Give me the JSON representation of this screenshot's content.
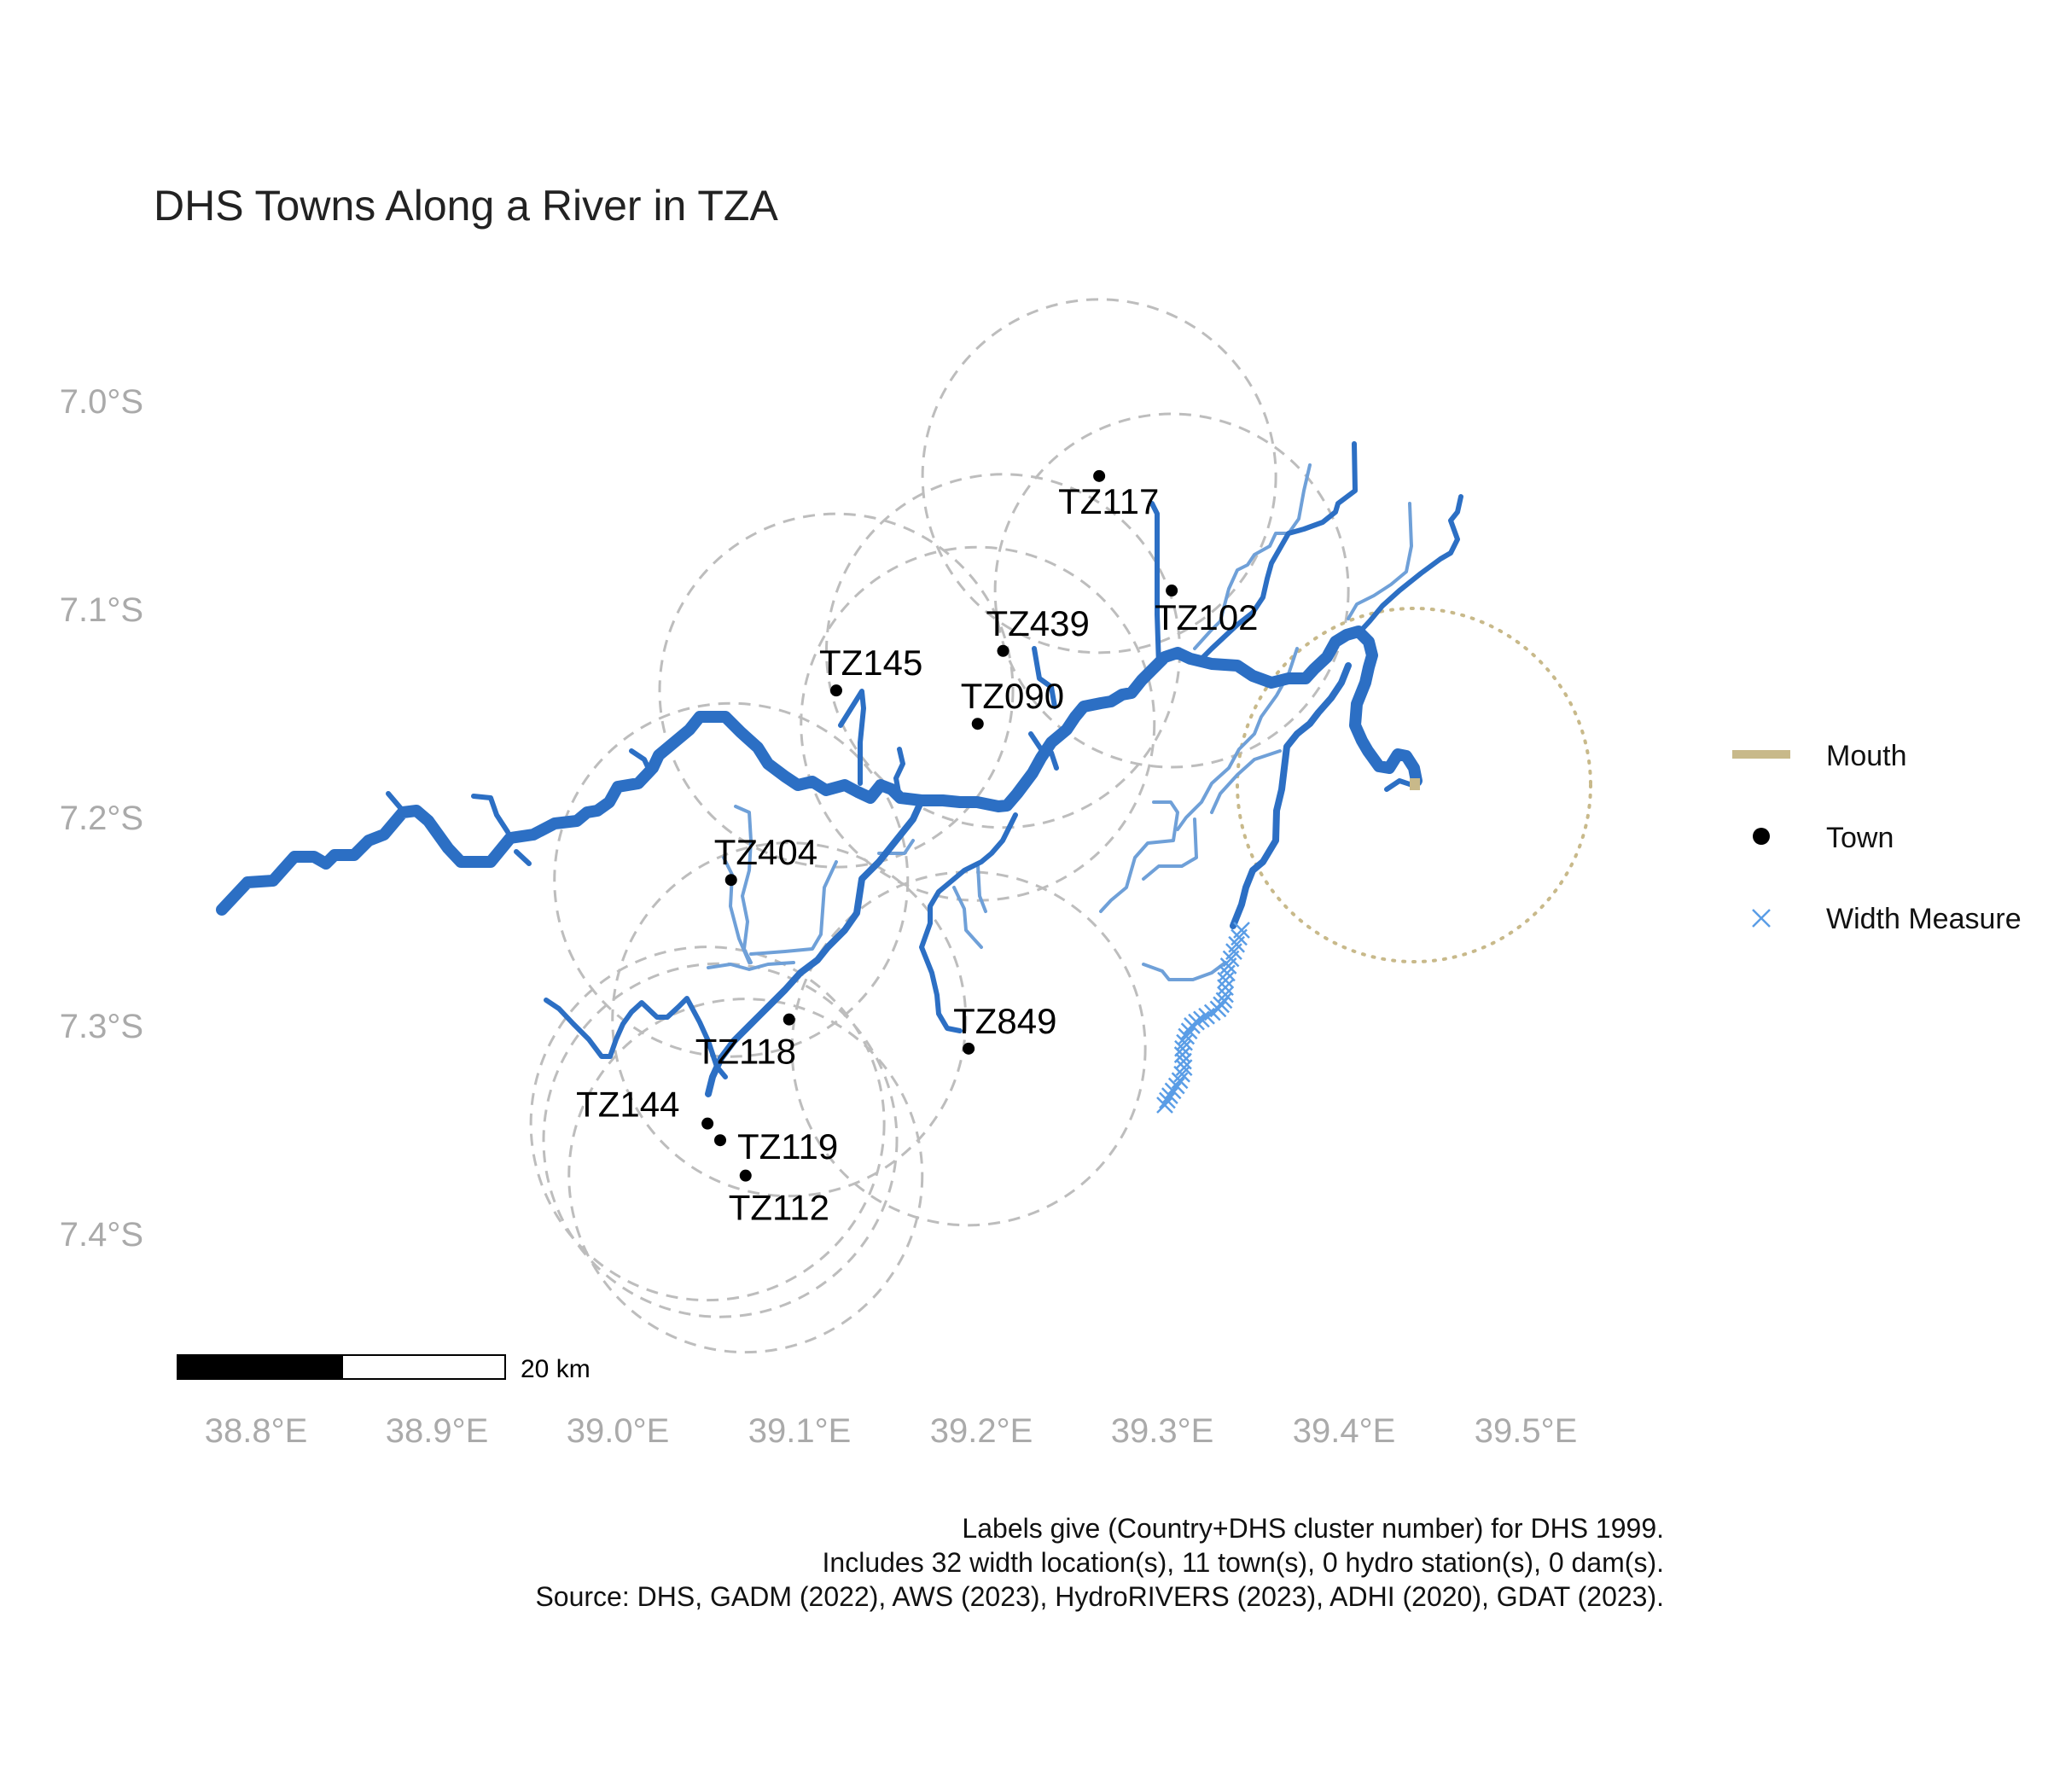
{
  "title": "DHS Towns Along a River in TZA",
  "axes": {
    "lon_ticks": [
      "38.8°E",
      "38.9°E",
      "39.0°E",
      "39.1°E",
      "39.2°E",
      "39.3°E",
      "39.4°E",
      "39.5°E"
    ],
    "lat_ticks": [
      "7.0°S",
      "7.1°S",
      "7.2°S",
      "7.3°S",
      "7.4°S"
    ]
  },
  "towns": [
    {
      "label": "TZ117",
      "lon": 39.265,
      "lat": -7.036
    },
    {
      "label": "TZ102",
      "lon": 39.305,
      "lat": -7.091
    },
    {
      "label": "TZ439",
      "lon": 39.212,
      "lat": -7.12
    },
    {
      "label": "TZ145",
      "lon": 39.12,
      "lat": -7.139
    },
    {
      "label": "TZ090",
      "lon": 39.198,
      "lat": -7.155
    },
    {
      "label": "TZ404",
      "lon": 39.062,
      "lat": -7.23
    },
    {
      "label": "TZ118",
      "lon": 39.094,
      "lat": -7.297
    },
    {
      "label": "TZ849",
      "lon": 39.193,
      "lat": -7.311
    },
    {
      "label": "TZ144",
      "lon": 39.049,
      "lat": -7.347
    },
    {
      "label": "TZ119",
      "lon": 39.056,
      "lat": -7.355
    },
    {
      "label": "TZ112",
      "lon": 39.07,
      "lat": -7.372
    }
  ],
  "mouth": {
    "lon": 39.44,
    "lat": -7.186
  },
  "legend": {
    "mouth": "Mouth",
    "town": "Town",
    "width": "Width Measure"
  },
  "scale_bar": {
    "label": "20 km"
  },
  "caption": {
    "line1": "Labels give (Country+DHS cluster number) for DHS 1999.",
    "line2": "Includes 32 width location(s), 11 town(s), 0 hydro station(s), 0 dam(s).",
    "line3": "Source: DHS, GADM (2022), AWS (2023), HydroRIVERS (2023), ADHI (2020), GDAT (2023)."
  },
  "colors": {
    "river": "#2c6fc4",
    "tributary": "#6fa0d8",
    "width_measure": "#5a9de6",
    "mouth": "#c8b98a",
    "buffer": "#bdbdbd",
    "town": "#000000"
  }
}
